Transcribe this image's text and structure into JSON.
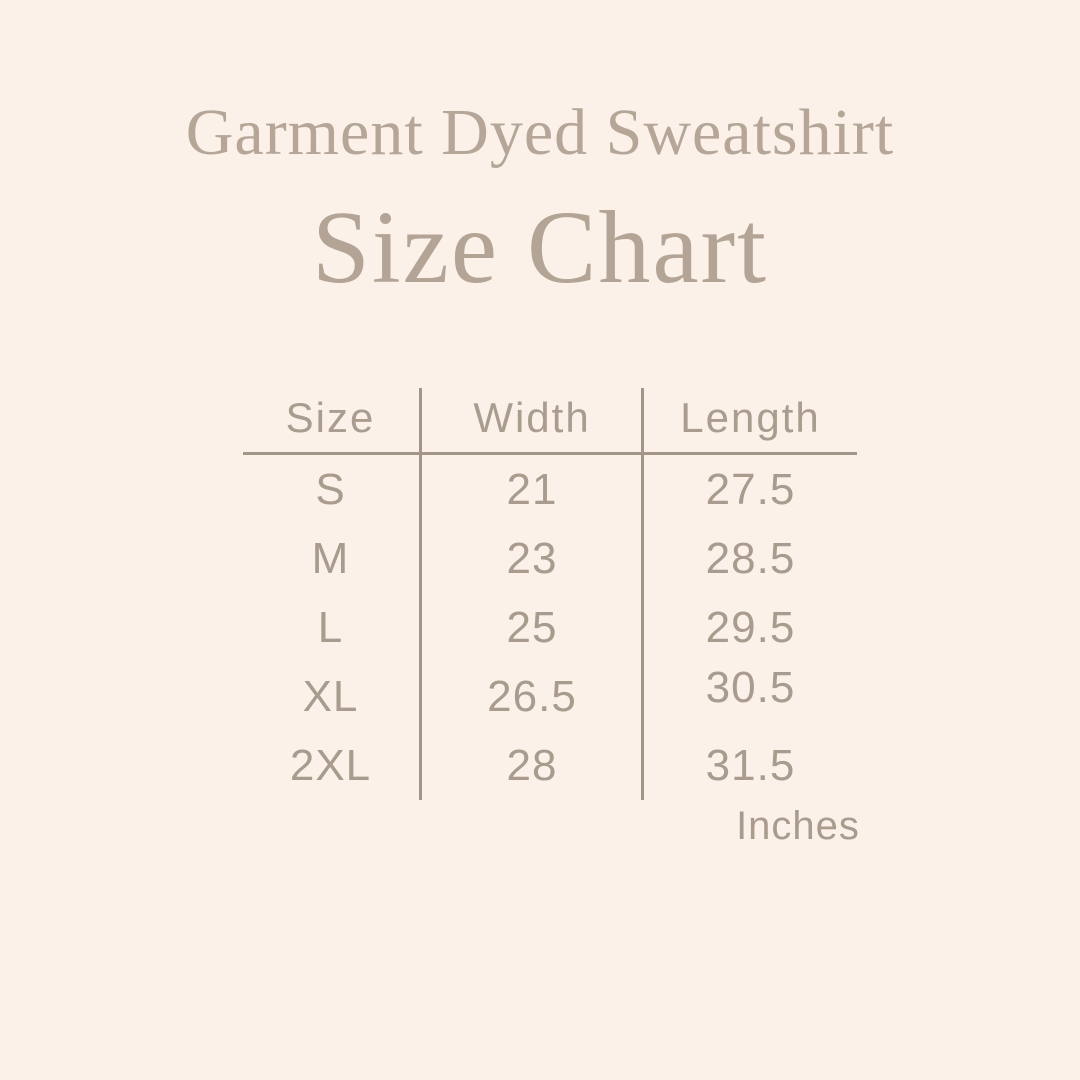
{
  "page": {
    "background_color": "#fbf1e8",
    "title_color": "#b5a698",
    "table_text_color": "#a99b8d",
    "line_color": "#a39588"
  },
  "header": {
    "title": "Garment Dyed Sweatshirt",
    "subtitle": "Size Chart"
  },
  "table": {
    "columns": [
      "Size",
      "Width",
      "Length"
    ],
    "rows": [
      {
        "size": "S",
        "width": "21",
        "length": "27.5"
      },
      {
        "size": "M",
        "width": "23",
        "length": "28.5"
      },
      {
        "size": "L",
        "width": "25",
        "length": "29.5"
      },
      {
        "size": "XL",
        "width": "26.5",
        "length": "30.5"
      },
      {
        "size": "2XL",
        "width": "28",
        "length": "31.5"
      }
    ],
    "unit_label": "Inches"
  },
  "chart_data": {
    "type": "table",
    "title": "Garment Dyed Sweatshirt Size Chart",
    "columns": [
      "Size",
      "Width",
      "Length"
    ],
    "units": "Inches",
    "rows": [
      [
        "S",
        21,
        27.5
      ],
      [
        "M",
        23,
        28.5
      ],
      [
        "L",
        25,
        29.5
      ],
      [
        "XL",
        26.5,
        30.5
      ],
      [
        "2XL",
        28,
        31.5
      ]
    ]
  }
}
